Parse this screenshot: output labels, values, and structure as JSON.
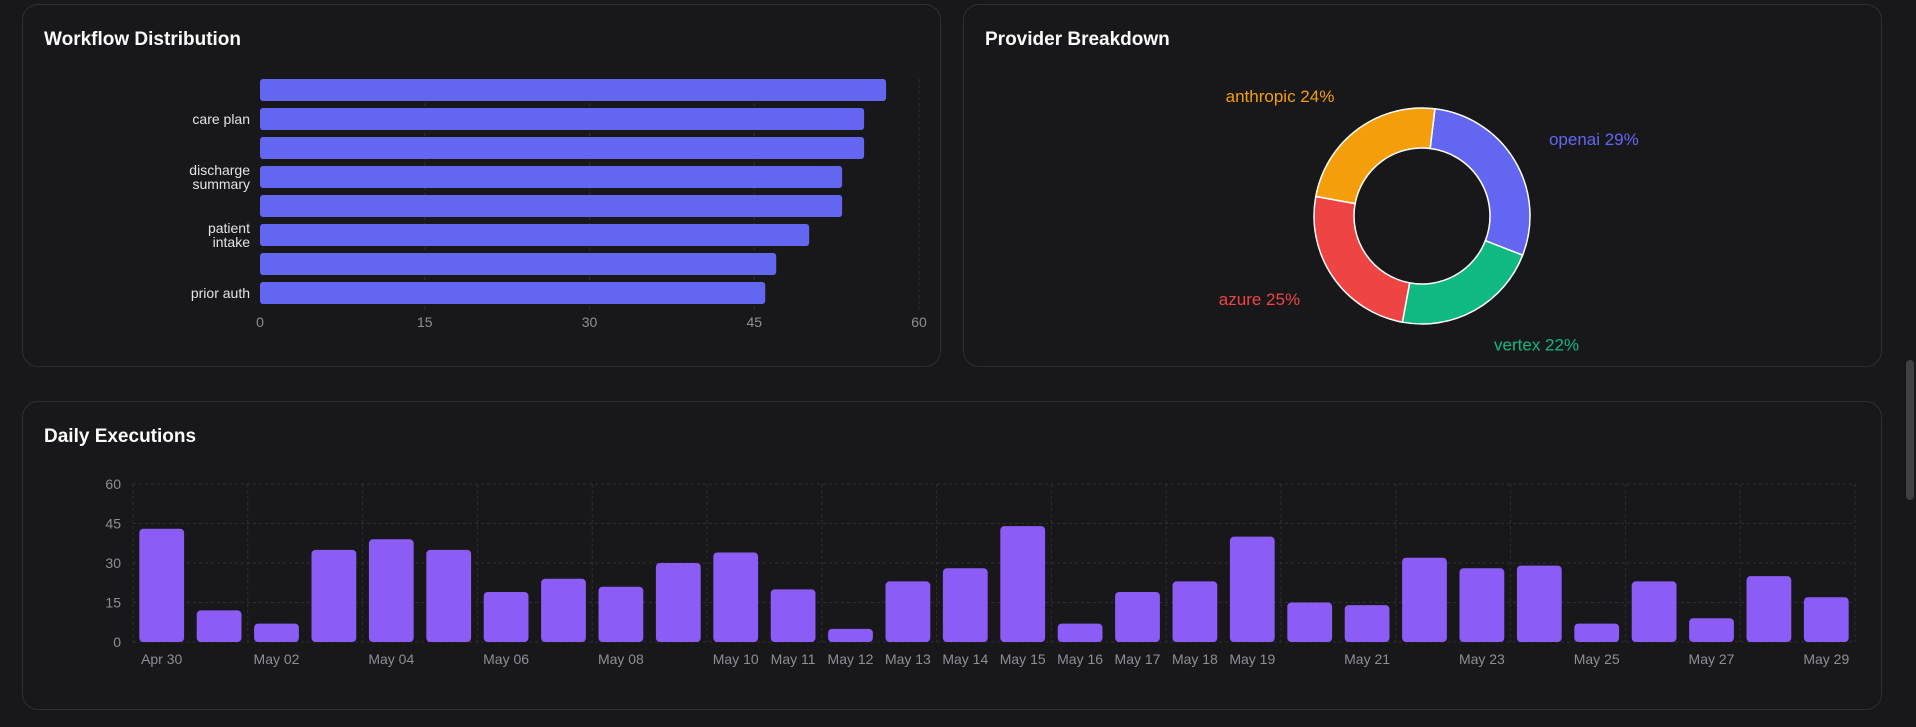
{
  "workflow": {
    "title": "Workflow Distribution",
    "chart_data": {
      "type": "bar",
      "orientation": "horizontal",
      "categories": [
        "",
        "care plan",
        "",
        "discharge summary",
        "",
        "patient intake",
        "",
        "prior auth"
      ],
      "values": [
        57,
        55,
        55,
        53,
        53,
        50,
        47,
        46
      ],
      "xticks": [
        "0",
        "15",
        "30",
        "45",
        "60"
      ],
      "xlim": [
        0,
        60
      ],
      "color": "#6366f1"
    }
  },
  "provider": {
    "title": "Provider Breakdown",
    "chart_data": {
      "type": "pie",
      "slices": [
        {
          "name": "openai",
          "label": "openai 29%",
          "value": 29,
          "color": "#6366f1"
        },
        {
          "name": "vertex",
          "label": "vertex 22%",
          "value": 22,
          "color": "#10b981"
        },
        {
          "name": "azure",
          "label": "azure 25%",
          "value": 25,
          "color": "#ef4444"
        },
        {
          "name": "anthropic",
          "label": "anthropic 24%",
          "value": 24,
          "color": "#f59e0b"
        }
      ],
      "donut": true
    }
  },
  "daily": {
    "title": "Daily Executions",
    "chart_data": {
      "type": "bar",
      "values": [
        43,
        12,
        7,
        35,
        39,
        35,
        19,
        24,
        21,
        30,
        34,
        20,
        5,
        23,
        28,
        44,
        7,
        19,
        23,
        40,
        15,
        14,
        32,
        28,
        29,
        7,
        23,
        9,
        25,
        17
      ],
      "xtick_labels": [
        "Apr 30",
        "",
        "May 02",
        "",
        "May 04",
        "",
        "May 06",
        "",
        "May 08",
        "",
        "May 10",
        "May 11",
        "May 12",
        "May 13",
        "May 14",
        "May 15",
        "May 16",
        "May 17",
        "May 18",
        "May 19",
        "",
        "May 21",
        "",
        "May 23",
        "",
        "May 25",
        "",
        "May 27",
        "",
        "May 29"
      ],
      "yticks": [
        "60",
        "45",
        "30",
        "15",
        "0"
      ],
      "ylim": [
        0,
        60
      ],
      "grid": true,
      "color": "#8b5cf6"
    }
  }
}
